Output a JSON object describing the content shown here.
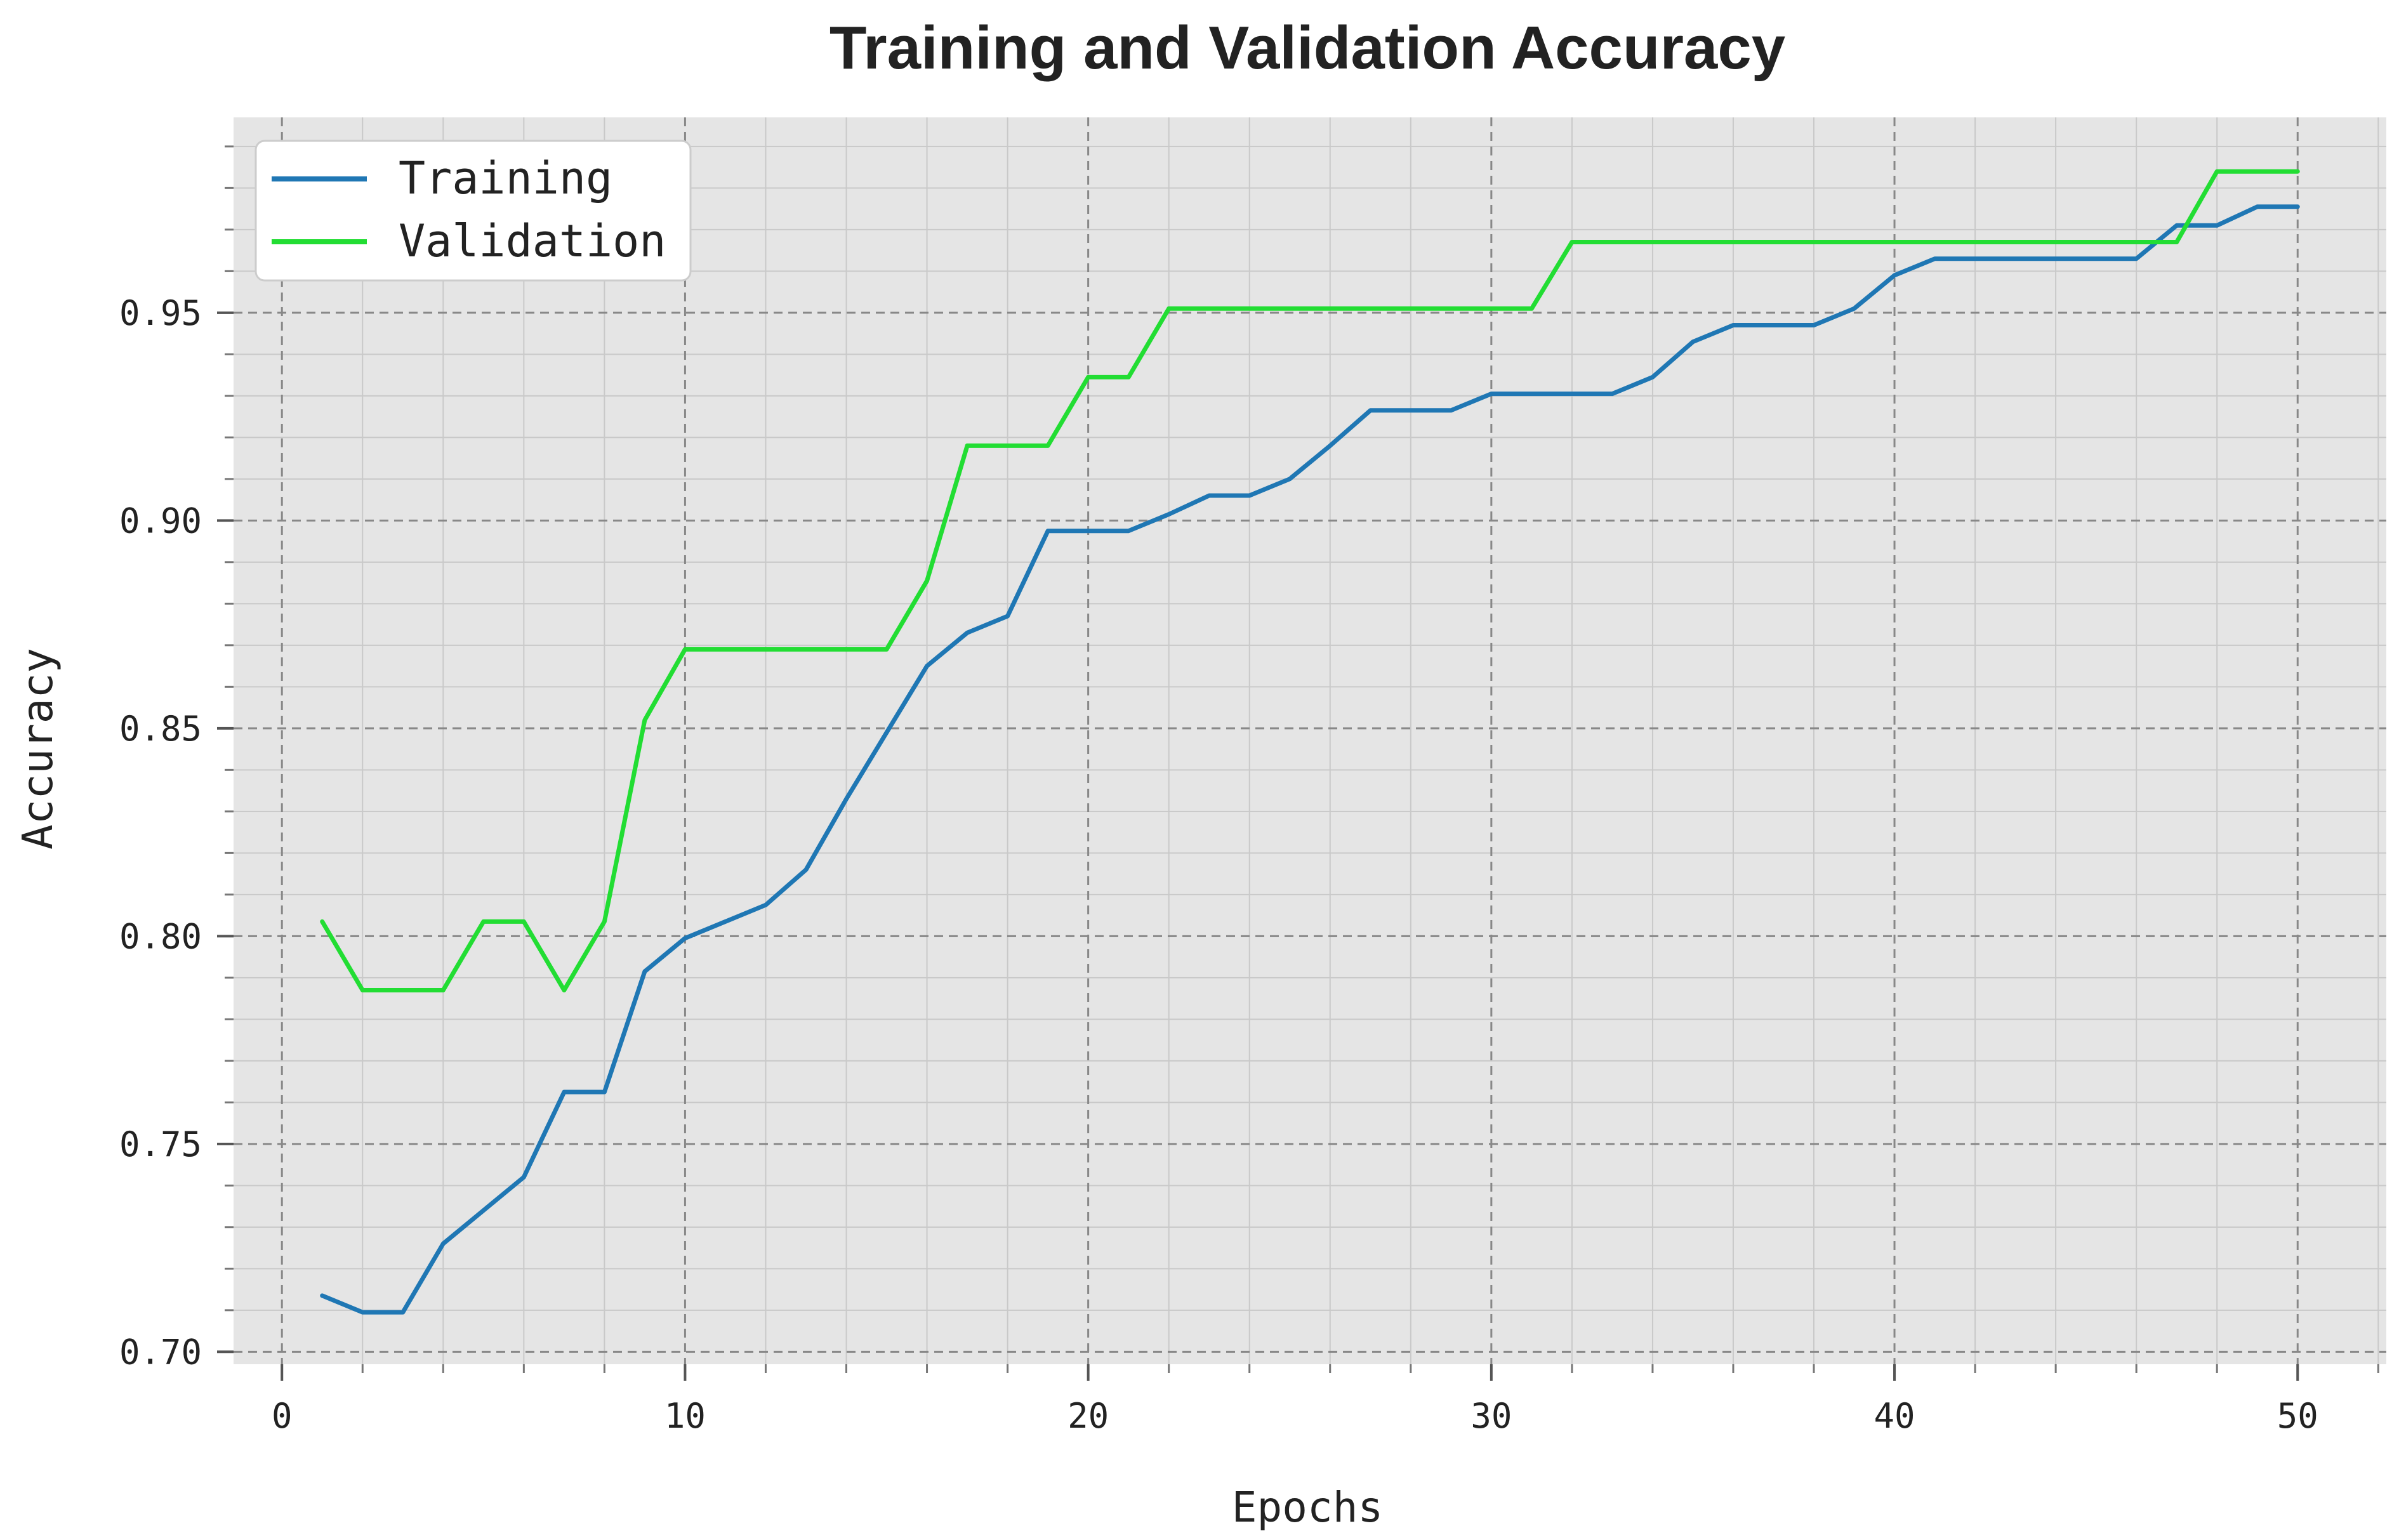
{
  "chart_data": {
    "type": "line",
    "title": "Training and Validation Accuracy",
    "xlabel": "Epochs",
    "ylabel": "Accuracy",
    "xlim": [
      -1.2,
      52.2
    ],
    "ylim": [
      0.697,
      0.997
    ],
    "xticks": [
      0,
      10,
      20,
      30,
      40,
      50
    ],
    "xtick_labels": [
      "0",
      "10",
      "20",
      "30",
      "40",
      "50"
    ],
    "yticks": [
      0.7,
      0.75,
      0.8,
      0.85,
      0.9,
      0.95
    ],
    "ytick_labels": [
      "0.70",
      "0.75",
      "0.80",
      "0.85",
      "0.90",
      "0.95"
    ],
    "grid": true,
    "legend": "top-left",
    "x": [
      1,
      2,
      3,
      4,
      5,
      6,
      7,
      8,
      9,
      10,
      11,
      12,
      13,
      14,
      15,
      16,
      17,
      18,
      19,
      20,
      21,
      22,
      23,
      24,
      25,
      26,
      27,
      28,
      29,
      30,
      31,
      32,
      33,
      34,
      35,
      36,
      37,
      38,
      39,
      40,
      41,
      42,
      43,
      44,
      45,
      46,
      47,
      48,
      49,
      50
    ],
    "series": [
      {
        "name": "Training",
        "color": "#1f77b4",
        "values": [
          0.7135,
          0.7095,
          0.7095,
          0.726,
          0.734,
          0.742,
          0.7625,
          0.7625,
          0.7915,
          0.7995,
          0.8035,
          0.8075,
          0.816,
          0.833,
          0.849,
          0.865,
          0.873,
          0.877,
          0.8975,
          0.8975,
          0.8975,
          0.9015,
          0.906,
          0.906,
          0.91,
          0.918,
          0.9265,
          0.9265,
          0.9265,
          0.9305,
          0.9305,
          0.9305,
          0.9305,
          0.9345,
          0.943,
          0.947,
          0.947,
          0.947,
          0.951,
          0.959,
          0.963,
          0.963,
          0.963,
          0.963,
          0.963,
          0.963,
          0.971,
          0.971,
          0.9755,
          0.9755
        ]
      },
      {
        "name": "Validation",
        "color": "#22dd33",
        "values": [
          0.8035,
          0.787,
          0.787,
          0.787,
          0.8035,
          0.8035,
          0.787,
          0.8035,
          0.852,
          0.869,
          0.869,
          0.869,
          0.869,
          0.869,
          0.869,
          0.8855,
          0.918,
          0.918,
          0.918,
          0.9345,
          0.9345,
          0.951,
          0.951,
          0.951,
          0.951,
          0.951,
          0.951,
          0.951,
          0.951,
          0.951,
          0.951,
          0.967,
          0.967,
          0.967,
          0.967,
          0.967,
          0.967,
          0.967,
          0.967,
          0.967,
          0.967,
          0.967,
          0.967,
          0.967,
          0.967,
          0.967,
          0.967,
          0.984,
          0.984,
          0.984
        ]
      }
    ]
  }
}
